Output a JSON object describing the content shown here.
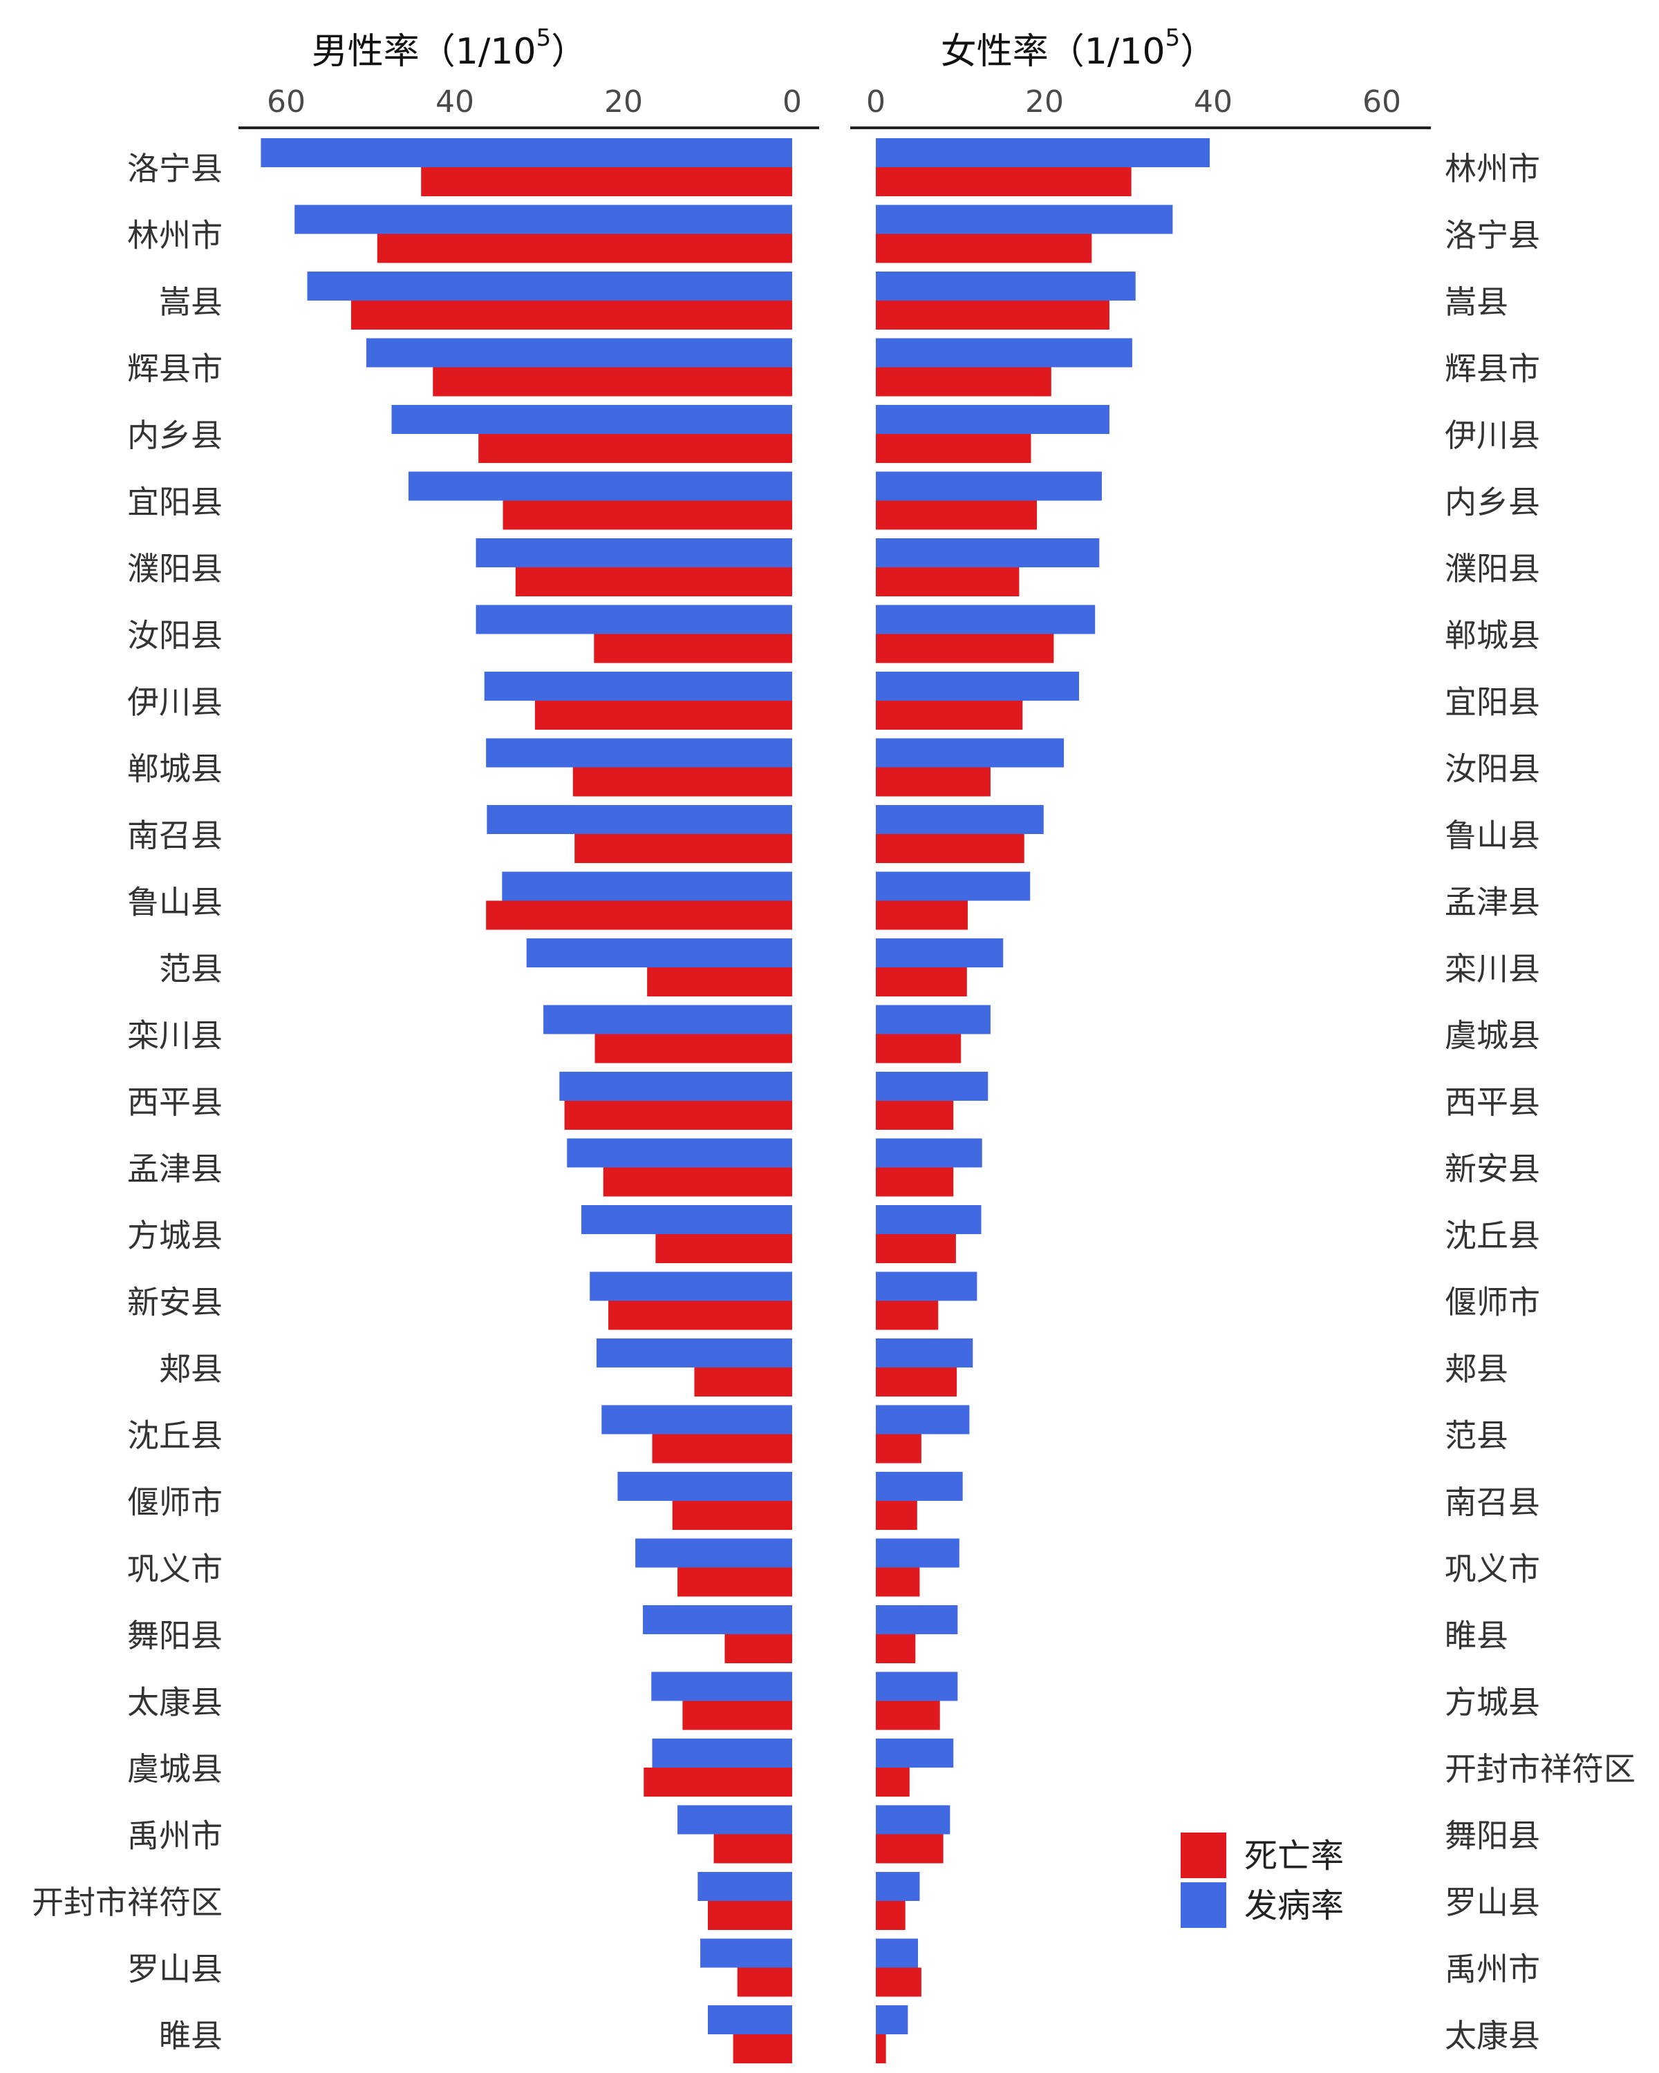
{
  "chart_data": [
    {
      "panel": "male",
      "type": "bar",
      "orientation": "horizontal",
      "direction": "leftward",
      "title": {
        "main": "男性率（1/10",
        "sup": "5",
        "close": "）"
      },
      "xticks": [
        "60",
        "40",
        "20",
        "0"
      ],
      "xlim": [
        0,
        66
      ],
      "categories": [
        "洛宁县",
        "林州市",
        "嵩县",
        "辉县市",
        "内乡县",
        "宜阳县",
        "濮阳县",
        "汝阳县",
        "伊川县",
        "郸城县",
        "南召县",
        "鲁山县",
        "范县",
        "栾川县",
        "西平县",
        "孟津县",
        "方城县",
        "新安县",
        "郏县",
        "沈丘县",
        "偃师市",
        "巩义市",
        "舞阳县",
        "太康县",
        "虞城县",
        "禹州市",
        "开封市祥符区",
        "罗山县",
        "睢县"
      ],
      "series": [
        {
          "name": "发病率",
          "color": "#4169e1",
          "values": [
            63,
            59,
            57.5,
            50.5,
            47.5,
            45.5,
            37.5,
            37.5,
            36.5,
            36.3,
            36.2,
            34.4,
            31.5,
            29.5,
            27.6,
            26.7,
            25,
            24,
            23.2,
            22.6,
            20.7,
            18.6,
            17.7,
            16.7,
            16.6,
            13.6,
            11.2,
            10.9,
            10
          ]
        },
        {
          "name": "死亡率",
          "color": "#e0191e",
          "values": [
            44,
            49.2,
            52.3,
            42.6,
            37.2,
            34.3,
            32.8,
            23.5,
            30.5,
            26,
            25.8,
            36.3,
            17.2,
            23.4,
            27,
            22.4,
            16.2,
            21.8,
            11.6,
            16.6,
            14.2,
            13.6,
            8,
            13,
            17.6,
            9.3,
            10,
            6.5,
            7
          ]
        }
      ]
    },
    {
      "panel": "female",
      "type": "bar",
      "orientation": "horizontal",
      "direction": "rightward",
      "title": {
        "main": "女性率（1/10",
        "sup": "5",
        "close": "）"
      },
      "xticks": [
        "0",
        "20",
        "40",
        "60"
      ],
      "xlim": [
        0,
        66
      ],
      "categories": [
        "林州市",
        "洛宁县",
        "嵩县",
        "辉县市",
        "伊川县",
        "内乡县",
        "濮阳县",
        "郸城县",
        "宜阳县",
        "汝阳县",
        "鲁山县",
        "孟津县",
        "栾川县",
        "虞城县",
        "西平县",
        "新安县",
        "沈丘县",
        "偃师市",
        "郏县",
        "范县",
        "南召县",
        "巩义市",
        "睢县",
        "方城县",
        "开封市祥符区",
        "舞阳县",
        "罗山县",
        "禹州市",
        "太康县"
      ],
      "series": [
        {
          "name": "发病率",
          "color": "#4169e1",
          "values": [
            39.6,
            35.2,
            30.8,
            30.4,
            27.7,
            26.8,
            26.5,
            26,
            24.1,
            22.3,
            19.9,
            18.3,
            15.1,
            13.6,
            13.3,
            12.6,
            12.5,
            12,
            11.5,
            11.1,
            10.3,
            9.9,
            9.7,
            9.7,
            9.2,
            8.8,
            5.2,
            5,
            3.8
          ]
        },
        {
          "name": "死亡率",
          "color": "#e0191e",
          "values": [
            30.3,
            25.6,
            27.7,
            20.8,
            18.4,
            19.1,
            17,
            21.1,
            17.4,
            13.6,
            17.6,
            10.9,
            10.8,
            10.1,
            9.2,
            9.2,
            9.5,
            7.4,
            9.6,
            5.4,
            4.9,
            5.2,
            4.7,
            7.6,
            4,
            8,
            3.5,
            5.4,
            1.2
          ]
        }
      ]
    }
  ],
  "legend": [
    {
      "label": "死亡率",
      "color": "#e0191e"
    },
    {
      "label": "发病率",
      "color": "#4169e1"
    }
  ]
}
